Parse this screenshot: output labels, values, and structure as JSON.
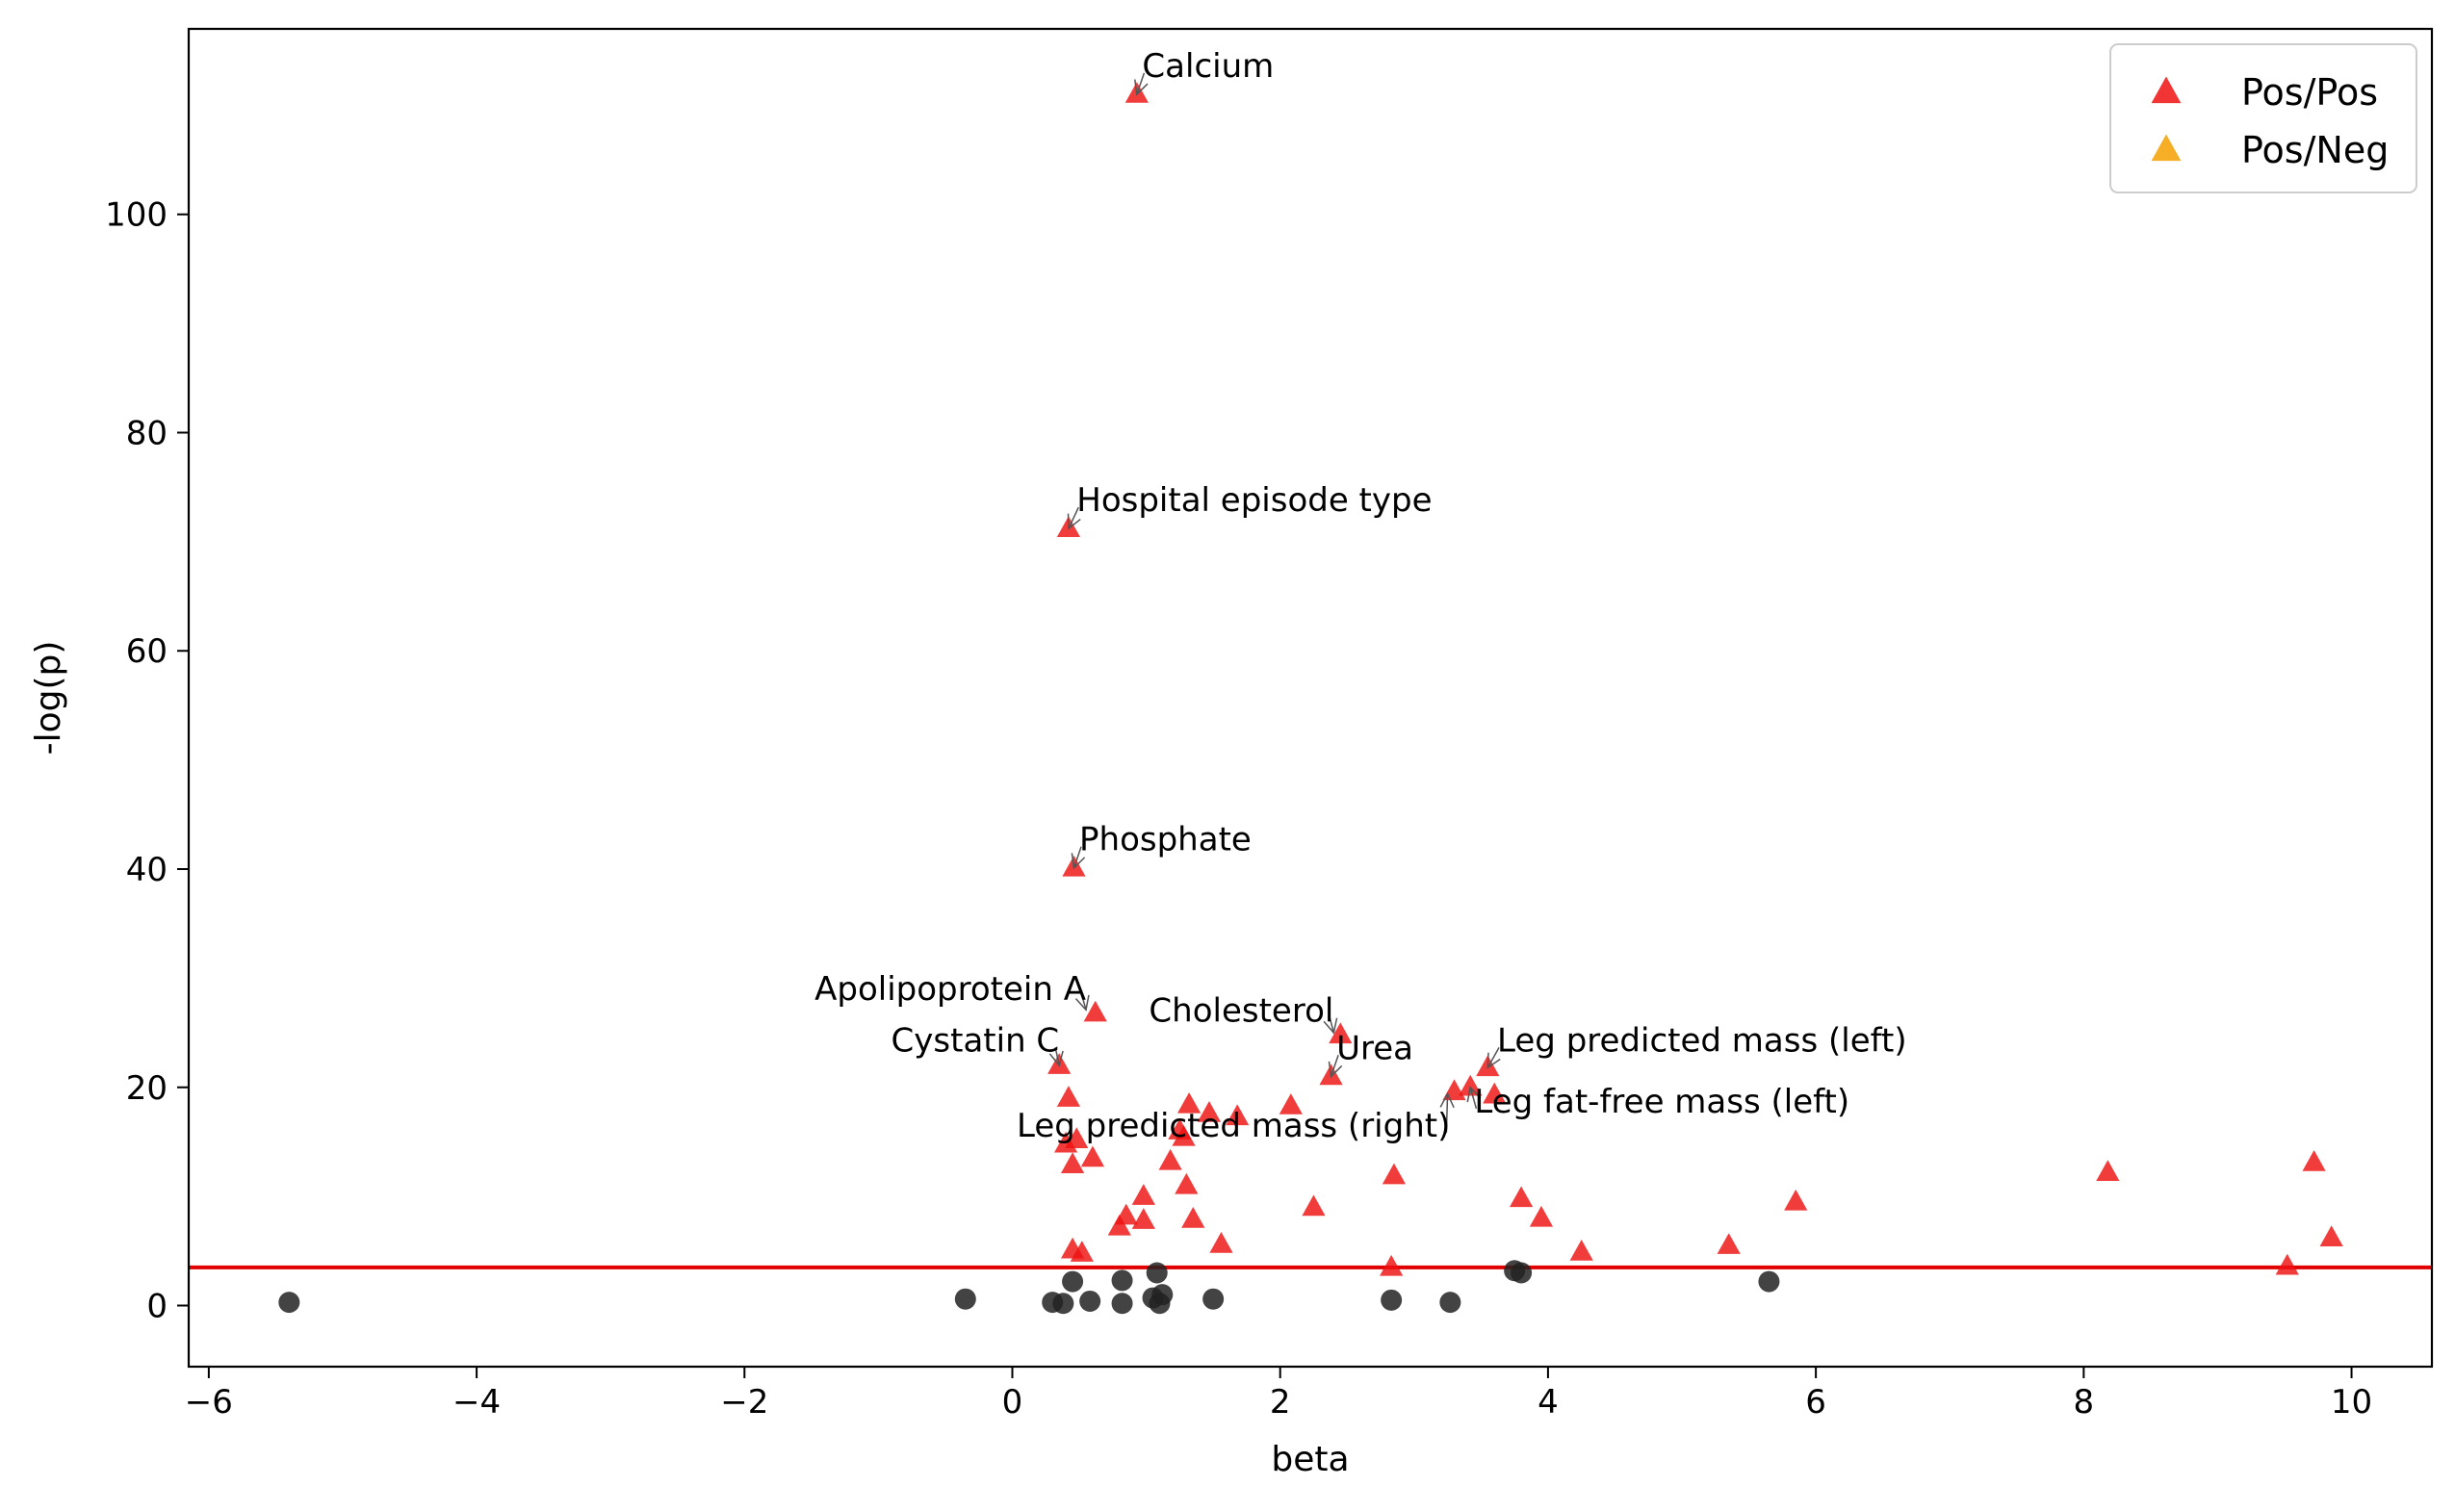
{
  "chart_data": {
    "type": "scatter",
    "title": "",
    "xlabel": "beta",
    "ylabel": "-log(p)",
    "xlim": [
      -6.15,
      10.6
    ],
    "ylim": [
      -5.6,
      117
    ],
    "x_ticks": [
      -6,
      -4,
      -2,
      0,
      2,
      4,
      6,
      8,
      10
    ],
    "x_tick_labels": [
      "−6",
      "−4",
      "−2",
      "0",
      "2",
      "4",
      "6",
      "8",
      "10"
    ],
    "y_ticks": [
      0,
      20,
      40,
      60,
      80,
      100
    ],
    "y_tick_labels": [
      "0",
      "20",
      "40",
      "60",
      "80",
      "100"
    ],
    "grid": false,
    "threshold": {
      "y": 3.5,
      "color": "#e00000"
    },
    "legend": {
      "position": "top-right",
      "entries": [
        {
          "label": "Pos/Pos",
          "color": "#ee1111",
          "marker": "triangle"
        },
        {
          "label": "Pos/Neg",
          "color": "#f5a000",
          "marker": "triangle"
        }
      ]
    },
    "series": [
      {
        "name": "Pos/Pos",
        "marker": "triangle",
        "color": "#ee1111",
        "points": [
          [
            0.93,
            111.0
          ],
          [
            0.42,
            71.2
          ],
          [
            0.46,
            40.1
          ],
          [
            0.62,
            26.8
          ],
          [
            0.35,
            22.0
          ],
          [
            2.45,
            24.8
          ],
          [
            2.38,
            21.0
          ],
          [
            3.55,
            21.8
          ],
          [
            3.3,
            19.6
          ],
          [
            3.42,
            20.0
          ],
          [
            3.6,
            19.3
          ],
          [
            0.42,
            19.0
          ],
          [
            0.4,
            14.8
          ],
          [
            0.48,
            15.2
          ],
          [
            0.45,
            12.9
          ],
          [
            0.6,
            13.5
          ],
          [
            1.32,
            18.4
          ],
          [
            1.47,
            17.6
          ],
          [
            1.68,
            17.3
          ],
          [
            2.08,
            18.3
          ],
          [
            1.25,
            16.0
          ],
          [
            1.28,
            15.4
          ],
          [
            1.18,
            13.2
          ],
          [
            1.3,
            11.0
          ],
          [
            0.98,
            10.0
          ],
          [
            0.85,
            8.2
          ],
          [
            0.8,
            7.2
          ],
          [
            0.98,
            7.8
          ],
          [
            1.35,
            7.9
          ],
          [
            1.56,
            5.6
          ],
          [
            2.25,
            9.0
          ],
          [
            2.85,
            11.9
          ],
          [
            3.8,
            9.8
          ],
          [
            3.95,
            8.0
          ],
          [
            4.25,
            4.9
          ],
          [
            2.83,
            3.5
          ],
          [
            0.45,
            5.1
          ],
          [
            0.52,
            4.8
          ],
          [
            5.35,
            5.5
          ],
          [
            5.85,
            9.5
          ],
          [
            8.18,
            12.2
          ],
          [
            9.72,
            13.1
          ],
          [
            9.85,
            6.2
          ],
          [
            9.52,
            3.6
          ]
        ]
      },
      {
        "name": "",
        "marker": "circle",
        "color": "#222222",
        "points": [
          [
            -5.4,
            0.3
          ],
          [
            -0.35,
            0.6
          ],
          [
            0.3,
            0.3
          ],
          [
            0.38,
            0.2
          ],
          [
            0.45,
            2.2
          ],
          [
            0.58,
            0.4
          ],
          [
            0.82,
            2.3
          ],
          [
            0.82,
            0.2
          ],
          [
            1.05,
            0.7
          ],
          [
            1.08,
            3.0
          ],
          [
            1.1,
            0.2
          ],
          [
            1.12,
            1.0
          ],
          [
            1.5,
            0.6
          ],
          [
            2.83,
            0.5
          ],
          [
            3.27,
            0.3
          ],
          [
            3.75,
            3.2
          ],
          [
            3.8,
            3.0
          ],
          [
            5.65,
            2.2
          ]
        ]
      }
    ],
    "annotations": [
      {
        "text": "Calcium",
        "x": 0.93,
        "y": 111.0,
        "tx": 0.97,
        "ty": 112.6,
        "anchor": "start"
      },
      {
        "text": "Hospital episode type",
        "x": 0.42,
        "y": 71.2,
        "tx": 0.48,
        "ty": 72.8,
        "anchor": "start"
      },
      {
        "text": "Phosphate",
        "x": 0.46,
        "y": 40.1,
        "tx": 0.5,
        "ty": 41.7,
        "anchor": "start"
      },
      {
        "text": "Apolipoprotein A",
        "x": 0.55,
        "y": 27.1,
        "tx": 0.55,
        "ty": 28.0,
        "anchor": "end"
      },
      {
        "text": "Cystatin C",
        "x": 0.35,
        "y": 22.0,
        "tx": 0.35,
        "ty": 23.3,
        "anchor": "end"
      },
      {
        "text": "Cholesterol",
        "x": 2.4,
        "y": 25.0,
        "tx": 2.4,
        "ty": 26.0,
        "anchor": "end"
      },
      {
        "text": "Urea",
        "x": 2.38,
        "y": 21.0,
        "tx": 2.42,
        "ty": 22.6,
        "anchor": "start"
      },
      {
        "text": "Leg predicted mass (left)",
        "x": 3.55,
        "y": 21.8,
        "tx": 3.62,
        "ty": 23.3,
        "anchor": "start"
      },
      {
        "text": "Leg fat-free mass (left)",
        "x": 3.42,
        "y": 20.0,
        "tx": 3.45,
        "ty": 17.7,
        "anchor": "start"
      },
      {
        "text": "Leg predicted mass (right)",
        "x": 3.25,
        "y": 19.4,
        "tx": 3.27,
        "ty": 15.5,
        "anchor": "end"
      }
    ]
  }
}
